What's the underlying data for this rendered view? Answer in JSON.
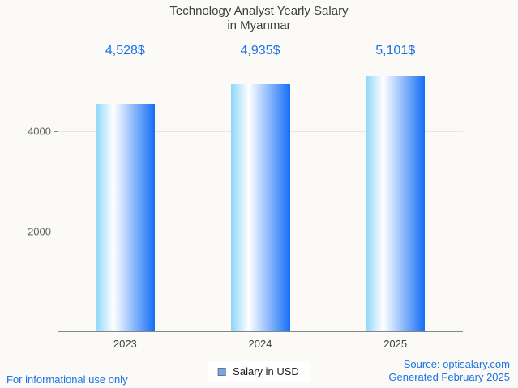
{
  "title": {
    "line1": "Technology Analyst Yearly Salary",
    "line2": "in Myanmar"
  },
  "chart_data": {
    "type": "bar",
    "title": "Technology Analyst Yearly Salary in Myanmar",
    "categories": [
      "2023",
      "2024",
      "2025"
    ],
    "values": [
      4528,
      4935,
      5101
    ],
    "value_labels": [
      "4,528$",
      "4,935$",
      "5,101$"
    ],
    "series_name": "Salary in USD",
    "xlabel": "",
    "ylabel": "",
    "ylim": [
      0,
      5490
    ],
    "yticks": [
      2000,
      4000
    ],
    "grid": true,
    "legend_position": "bottom"
  },
  "legend": {
    "label": "Salary in USD"
  },
  "footer": {
    "left": "For informational use only",
    "source": "Source: optisalary.com",
    "generated": "Generated February 2025"
  },
  "colors": {
    "background": "#fbfaf6",
    "accent_blue": "#1a73e8",
    "bar_gradient_left": "#8dd6f9",
    "bar_gradient_mid": "#ffffff",
    "bar_gradient_right": "#156ff7",
    "legend_swatch": "#6fa8f0"
  }
}
